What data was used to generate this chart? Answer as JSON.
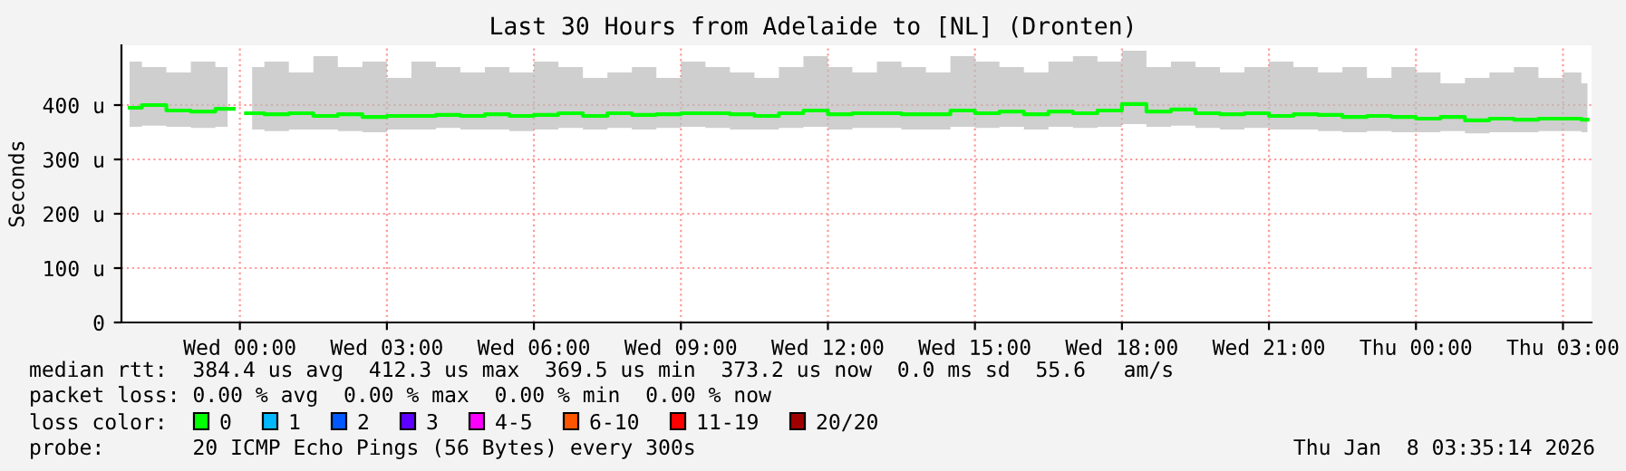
{
  "chart_data": {
    "type": "step",
    "title": "Last 30 Hours from Adelaide to [NL] (Dronten)",
    "ylabel": "Seconds",
    "x": [
      "2026-01-06T21:45",
      "2026-01-06T22:15",
      "2026-01-06T22:45",
      "2026-01-06T23:15",
      "2026-01-06T23:45",
      "2026-01-07T00:00",
      "2026-01-07T00:15",
      "2026-01-07T00:45",
      "2026-01-07T01:15",
      "2026-01-07T01:45",
      "2026-01-07T02:15",
      "2026-01-07T02:45",
      "2026-01-07T03:15",
      "2026-01-07T03:45",
      "2026-01-07T04:15",
      "2026-01-07T04:45",
      "2026-01-07T05:15",
      "2026-01-07T05:45",
      "2026-01-07T06:15",
      "2026-01-07T06:45",
      "2026-01-07T07:15",
      "2026-01-07T07:45",
      "2026-01-07T08:15",
      "2026-01-07T08:45",
      "2026-01-07T09:15",
      "2026-01-07T09:45",
      "2026-01-07T10:15",
      "2026-01-07T10:45",
      "2026-01-07T11:15",
      "2026-01-07T11:45",
      "2026-01-07T12:15",
      "2026-01-07T12:45",
      "2026-01-07T13:15",
      "2026-01-07T13:45",
      "2026-01-07T14:15",
      "2026-01-07T14:45",
      "2026-01-07T15:15",
      "2026-01-07T15:45",
      "2026-01-07T16:15",
      "2026-01-07T16:45",
      "2026-01-07T17:15",
      "2026-01-07T17:45",
      "2026-01-07T18:15",
      "2026-01-07T18:45",
      "2026-01-07T19:15",
      "2026-01-07T19:45",
      "2026-01-07T20:15",
      "2026-01-07T20:45",
      "2026-01-07T21:15",
      "2026-01-07T21:45",
      "2026-01-07T22:15",
      "2026-01-07T22:45",
      "2026-01-07T23:15",
      "2026-01-07T23:45",
      "2026-01-08T00:15",
      "2026-01-08T00:45",
      "2026-01-08T01:15",
      "2026-01-08T01:45",
      "2026-01-08T02:15",
      "2026-01-08T02:45",
      "2026-01-08T03:15",
      "2026-01-08T03:30"
    ],
    "series": [
      {
        "color": "#00ff00",
        "values": [
          395,
          400,
          390,
          388,
          393,
          null,
          385,
          383,
          385,
          380,
          383,
          378,
          380,
          380,
          382,
          380,
          383,
          380,
          382,
          385,
          380,
          385,
          382,
          383,
          385,
          385,
          383,
          380,
          385,
          390,
          383,
          385,
          385,
          383,
          383,
          390,
          385,
          388,
          383,
          388,
          385,
          390,
          402,
          388,
          392,
          385,
          383,
          385,
          380,
          383,
          382,
          378,
          380,
          378,
          375,
          378,
          372,
          375,
          373,
          375,
          375,
          373
        ],
        "lower": [
          360,
          362,
          360,
          358,
          360,
          null,
          355,
          352,
          355,
          355,
          352,
          350,
          355,
          355,
          358,
          355,
          355,
          352,
          355,
          358,
          355,
          358,
          355,
          358,
          360,
          358,
          355,
          355,
          358,
          360,
          355,
          358,
          358,
          355,
          355,
          360,
          358,
          360,
          355,
          360,
          358,
          360,
          365,
          360,
          362,
          358,
          355,
          358,
          355,
          355,
          352,
          350,
          352,
          350,
          350,
          352,
          348,
          350,
          350,
          352,
          352,
          350
        ],
        "upper": [
          480,
          470,
          460,
          480,
          470,
          null,
          470,
          480,
          460,
          490,
          470,
          480,
          450,
          480,
          470,
          460,
          470,
          460,
          480,
          470,
          450,
          460,
          470,
          450,
          480,
          470,
          460,
          450,
          470,
          490,
          470,
          460,
          480,
          470,
          460,
          490,
          480,
          470,
          460,
          480,
          490,
          480,
          500,
          470,
          480,
          470,
          460,
          470,
          480,
          470,
          460,
          470,
          450,
          470,
          460,
          440,
          450,
          460,
          470,
          450,
          460,
          440
        ]
      }
    ],
    "xlim": [
      "2026-01-06T21:35",
      "2026-01-08T03:35"
    ],
    "xticks": [
      {
        "value": "2026-01-07T00:00",
        "label": "Wed 00:00"
      },
      {
        "value": "2026-01-07T03:00",
        "label": "Wed 03:00"
      },
      {
        "value": "2026-01-07T06:00",
        "label": "Wed 06:00"
      },
      {
        "value": "2026-01-07T09:00",
        "label": "Wed 09:00"
      },
      {
        "value": "2026-01-07T12:00",
        "label": "Wed 12:00"
      },
      {
        "value": "2026-01-07T15:00",
        "label": "Wed 15:00"
      },
      {
        "value": "2026-01-07T18:00",
        "label": "Wed 18:00"
      },
      {
        "value": "2026-01-07T21:00",
        "label": "Wed 21:00"
      },
      {
        "value": "2026-01-08T00:00",
        "label": "Thu 00:00"
      },
      {
        "value": "2026-01-08T03:00",
        "label": "Thu 03:00"
      }
    ],
    "ylim": [
      0,
      510
    ],
    "yticks": [
      0,
      {
        "value": 100,
        "label": "100 u"
      },
      {
        "value": 200,
        "label": "200 u"
      },
      {
        "value": 300,
        "label": "300 u"
      },
      {
        "value": 400,
        "label": "400 u"
      }
    ],
    "grid": true,
    "annotations": [
      "median rtt:  384.4 us avg  412.3 us max  369.5 us min  373.2 us now  0.0 ms sd  55.6   am/s",
      "packet loss: 0.00 % avg  0.00 % max  0.00 % min  0.00 % now",
      "loss color:",
      "0",
      "1",
      "2",
      "3",
      "4-5",
      "6-10",
      "11-19",
      "20/20",
      "probe:       20 ICMP Echo Pings (56 Bytes) every 300s",
      "Thu Jan  8 03:35:14 2026"
    ]
  }
}
